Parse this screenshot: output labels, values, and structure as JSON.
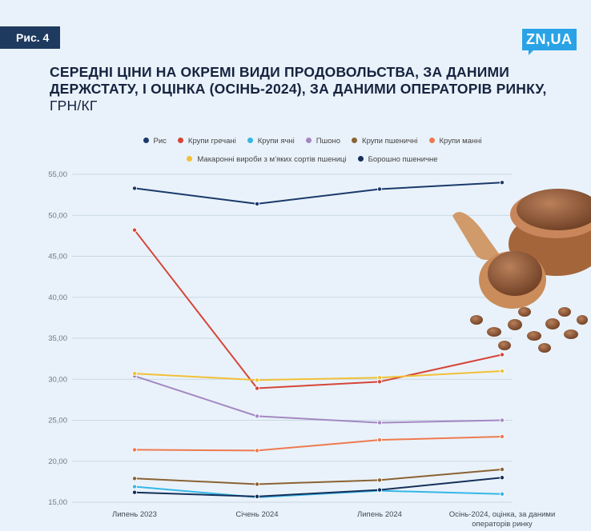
{
  "badge": "Рис. 4",
  "logo": "ZN,UA",
  "title_main": "Середні ціни на окремі види продовольства, за даними Держстату, і оцінка (осінь-2024), за даними операторів ринку,",
  "title_unit": " грн/кг",
  "legend": [
    {
      "label": "Рис",
      "color": "#1b3a6b"
    },
    {
      "label": "Крупи гречані",
      "color": "#d64539"
    },
    {
      "label": "Крупи ячні",
      "color": "#35b7e6"
    },
    {
      "label": "Пшоно",
      "color": "#a488c3"
    },
    {
      "label": "Крупи пшеничні",
      "color": "#8a6234"
    },
    {
      "label": "Крупи манні",
      "color": "#ee7a4f"
    },
    {
      "label": "Макаронні вироби з м’яких сортів пшениці",
      "color": "#f2c037"
    },
    {
      "label": "Борошно пшеничне",
      "color": "#16305a"
    }
  ],
  "chart_data": {
    "type": "line",
    "title": "Середні ціни на окремі види продовольства, за даними Держстату, і оцінка (осінь-2024), за даними операторів ринку, грн/кг",
    "categories": [
      "Липень 2023",
      "Січень 2024",
      "Липень 2024",
      "Осінь-2024, оцінка, за даними операторів ринку"
    ],
    "yticks": [
      "15,00",
      "20,00",
      "25,00",
      "30,00",
      "35,00",
      "40,00",
      "45,00",
      "50,00",
      "55,00"
    ],
    "ylim": [
      15,
      55
    ],
    "series": [
      {
        "name": "Рис",
        "color": "#1b3a6b",
        "values": [
          53.3,
          51.4,
          53.2,
          54.0
        ]
      },
      {
        "name": "Крупи гречані",
        "color": "#d64539",
        "values": [
          48.2,
          28.9,
          29.7,
          33.0
        ]
      },
      {
        "name": "Крупи ячні",
        "color": "#35b7e6",
        "values": [
          16.9,
          15.6,
          16.4,
          16.0
        ]
      },
      {
        "name": "Пшоно",
        "color": "#a488c3",
        "values": [
          30.4,
          25.5,
          24.7,
          25.0
        ]
      },
      {
        "name": "Крупи пшеничні",
        "color": "#8a6234",
        "values": [
          17.9,
          17.2,
          17.7,
          19.0
        ]
      },
      {
        "name": "Крупи манні",
        "color": "#ee7a4f",
        "values": [
          21.4,
          21.3,
          22.6,
          23.0
        ]
      },
      {
        "name": "Макаронні вироби з м’яких сортів пшениці",
        "color": "#f2c037",
        "values": [
          30.7,
          29.9,
          30.2,
          31.0
        ]
      },
      {
        "name": "Борошно пшеничне",
        "color": "#16305a",
        "values": [
          16.2,
          15.7,
          16.5,
          18.0
        ]
      }
    ]
  }
}
